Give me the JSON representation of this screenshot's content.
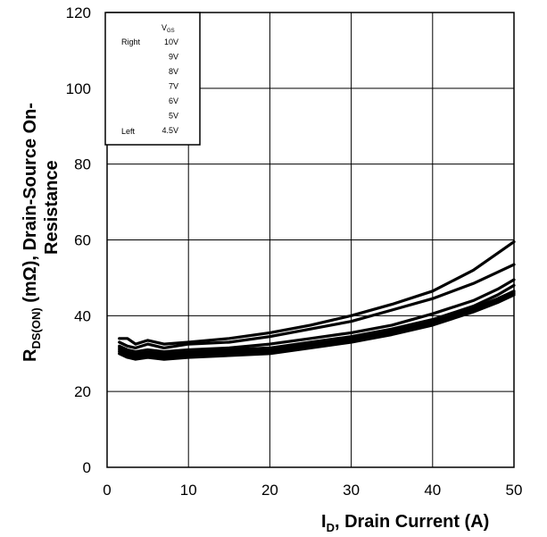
{
  "chart_data": {
    "type": "line",
    "xlabel": {
      "main": "I",
      "sub": "D",
      "rest": ", Drain Current (A)"
    },
    "ylabel": {
      "line1": {
        "main": "R",
        "sub": "DS(ON)",
        "rest": "  (mΩ), Drain-Source On-"
      },
      "line2": "Resistance"
    },
    "xlim": [
      0,
      50
    ],
    "ylim": [
      0,
      120
    ],
    "xticks": [
      "0",
      "10",
      "20",
      "30",
      "40",
      "50"
    ],
    "yticks": [
      "0",
      "20",
      "40",
      "60",
      "80",
      "100",
      "120"
    ],
    "grid": true,
    "legend": {
      "placement": "top-left",
      "header": {
        "main": "V",
        "sub": "GS"
      },
      "right_label": "Right",
      "left_label": "Left",
      "entries": [
        "10V",
        "9V",
        "8V",
        "7V",
        "6V",
        "5V",
        "4.5V"
      ]
    },
    "series": [
      {
        "name": "4.5V",
        "x": [
          1.5,
          2.5,
          3.5,
          5,
          7,
          10,
          15,
          20,
          25,
          30,
          35,
          40,
          45,
          48,
          50
        ],
        "y": [
          34,
          34,
          32.5,
          33.5,
          32.5,
          33,
          34,
          35.5,
          37.5,
          40,
          43,
          46.5,
          52,
          56.5,
          59.5
        ]
      },
      {
        "name": "5V",
        "x": [
          1.5,
          2.5,
          3.5,
          5,
          7,
          10,
          15,
          20,
          25,
          30,
          35,
          40,
          45,
          48,
          50
        ],
        "y": [
          33,
          32,
          31.5,
          32.5,
          31.5,
          32.5,
          33,
          34.5,
          36.5,
          38.5,
          41.5,
          44.5,
          48.5,
          51.5,
          53.5
        ]
      },
      {
        "name": "6V",
        "x": [
          1.5,
          2.5,
          3.5,
          5,
          7,
          10,
          15,
          20,
          25,
          30,
          35,
          40,
          45,
          48,
          50
        ],
        "y": [
          32,
          31,
          30.5,
          31,
          30.5,
          31,
          31.5,
          32.5,
          34,
          35.5,
          37.5,
          40.5,
          44,
          47,
          49.5
        ]
      },
      {
        "name": "7V",
        "x": [
          1.5,
          2.5,
          3.5,
          5,
          7,
          10,
          15,
          20,
          25,
          30,
          35,
          40,
          45,
          48,
          50
        ],
        "y": [
          31.5,
          30.5,
          30,
          30.5,
          30,
          30.5,
          31,
          31.5,
          33,
          34.5,
          36.5,
          39,
          42.5,
          45.5,
          48
        ]
      },
      {
        "name": "8V",
        "x": [
          1.5,
          2.5,
          3.5,
          5,
          7,
          10,
          15,
          20,
          25,
          30,
          35,
          40,
          45,
          48,
          50
        ],
        "y": [
          31,
          30,
          29.5,
          30,
          29.5,
          30,
          30.5,
          31,
          32.5,
          34,
          36,
          38.5,
          42,
          44.5,
          46.5
        ]
      },
      {
        "name": "9V",
        "x": [
          1.5,
          2.5,
          3.5,
          5,
          7,
          10,
          15,
          20,
          25,
          30,
          35,
          40,
          45,
          48,
          50
        ],
        "y": [
          30.5,
          29.5,
          29,
          29.5,
          29,
          29.5,
          30,
          30.5,
          32,
          33.5,
          35.5,
          38,
          41.5,
          44,
          46
        ]
      },
      {
        "name": "10V",
        "x": [
          1.5,
          2.5,
          3.5,
          5,
          7,
          10,
          15,
          20,
          25,
          30,
          35,
          40,
          45,
          48,
          50
        ],
        "y": [
          30,
          29,
          28.5,
          29,
          28.5,
          29,
          29.5,
          30,
          31.5,
          33,
          35,
          37.5,
          41,
          43.5,
          45.5
        ]
      }
    ]
  }
}
